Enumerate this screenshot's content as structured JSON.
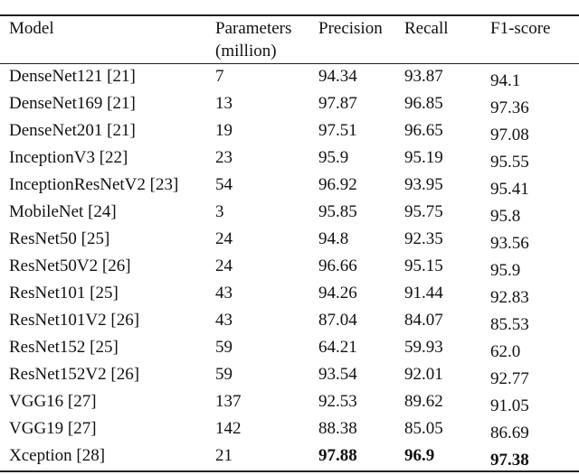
{
  "table": {
    "header": [
      [
        "Model"
      ],
      [
        "Parameters",
        "(million)"
      ],
      [
        "Precision"
      ],
      [
        "Recall"
      ],
      [
        "F1-score"
      ]
    ],
    "rows": [
      [
        "DenseNet121 [21]",
        "7",
        "94.34",
        "93.87",
        "94.1"
      ],
      [
        "DenseNet169 [21]",
        "13",
        "97.87",
        "96.85",
        "97.36"
      ],
      [
        "DenseNet201 [21]",
        "19",
        "97.51",
        "96.65",
        "97.08"
      ],
      [
        "InceptionV3 [22]",
        "23",
        "95.9",
        "95.19",
        "95.55"
      ],
      [
        "InceptionResNetV2 [23]",
        "54",
        "96.92",
        "93.95",
        "95.41"
      ],
      [
        "MobileNet [24]",
        "3",
        "95.85",
        "95.75",
        "95.8"
      ],
      [
        "ResNet50 [25]",
        "24",
        "94.8",
        "92.35",
        "93.56"
      ],
      [
        "ResNet50V2 [26]",
        "24",
        "96.66",
        "95.15",
        "95.9"
      ],
      [
        "ResNet101 [25]",
        "43",
        "94.26",
        "91.44",
        "92.83"
      ],
      [
        "ResNet101V2 [26]",
        "43",
        "87.04",
        "84.07",
        "85.53"
      ],
      [
        "ResNet152 [25]",
        "59",
        "64.21",
        "59.93",
        "62.0"
      ],
      [
        "ResNet152V2 [26]",
        "59",
        "93.54",
        "92.01",
        "92.77"
      ],
      [
        "VGG16 [27]",
        "137",
        "92.53",
        "89.62",
        "91.05"
      ],
      [
        "VGG19 [27]",
        "142",
        "88.38",
        "85.05",
        "86.69"
      ],
      [
        "Xception [28]",
        "21",
        "97.88",
        "96.9",
        "97.38"
      ]
    ]
  }
}
